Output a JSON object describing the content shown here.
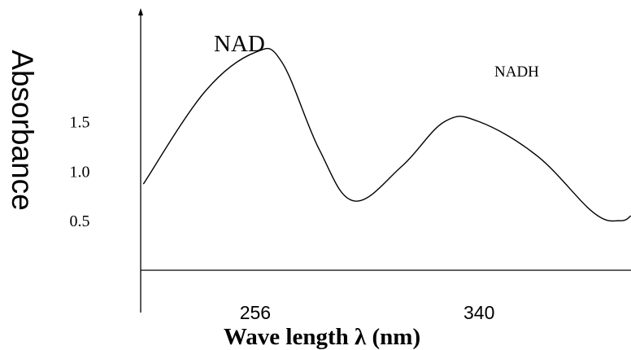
{
  "chart_data": {
    "type": "line",
    "ylabel": "Absorbance",
    "xlabel": "Wave length λ  (nm)",
    "x_ticks": [
      "256",
      "340"
    ],
    "y_ticks": [
      "1.5",
      "1.0",
      "0.5"
    ],
    "annotations": {
      "peak_1": "NAD",
      "peak_2": "NADH"
    },
    "series": [
      {
        "points": [
          {
            "x": 214,
            "y": 0.87
          },
          {
            "x": 237,
            "y": 1.8
          },
          {
            "x": 256,
            "y": 2.2
          },
          {
            "x": 266,
            "y": 2.1
          },
          {
            "x": 280,
            "y": 1.22
          },
          {
            "x": 293,
            "y": 0.7
          },
          {
            "x": 311,
            "y": 1.05
          },
          {
            "x": 327,
            "y": 1.5
          },
          {
            "x": 340,
            "y": 1.5
          },
          {
            "x": 362,
            "y": 1.15
          },
          {
            "x": 383,
            "y": 0.58
          },
          {
            "x": 393,
            "y": 0.5
          },
          {
            "x": 397,
            "y": 0.55
          }
        ]
      }
    ],
    "xlim": [
      213,
      397
    ],
    "ylim": [
      0,
      2.4
    ],
    "grid": false,
    "legend": "none",
    "colors": {
      "line": "#000000",
      "axis": "#000000",
      "text": "#000000"
    }
  }
}
